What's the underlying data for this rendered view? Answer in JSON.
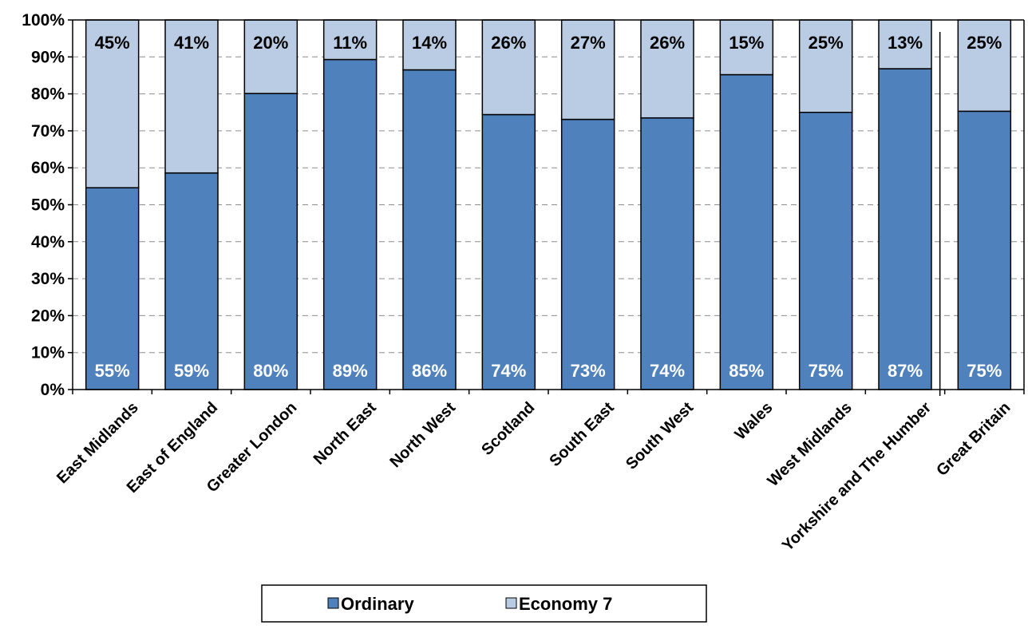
{
  "chart_data": {
    "type": "bar",
    "stacked": true,
    "categories": [
      "East Midlands",
      "East of England",
      "Greater London",
      "North East",
      "North West",
      "Scotland",
      "South East",
      "South West",
      "Wales",
      "West Midlands",
      "Yorkshire and The Humber",
      "Great Britain"
    ],
    "series": [
      {
        "name": "Ordinary",
        "values": [
          54.6,
          58.6,
          80.1,
          89.3,
          86.5,
          74.4,
          73.1,
          73.5,
          85.2,
          75.0,
          86.8,
          75.3
        ],
        "labels": [
          "55%",
          "59%",
          "80%",
          "89%",
          "86%",
          "74%",
          "73%",
          "74%",
          "85%",
          "75%",
          "87%",
          "75%"
        ]
      },
      {
        "name": "Economy 7",
        "values": [
          45.4,
          41.4,
          19.9,
          10.7,
          13.5,
          25.6,
          26.9,
          26.5,
          14.8,
          25.0,
          13.2,
          24.7
        ],
        "labels": [
          "45%",
          "41%",
          "20%",
          "11%",
          "14%",
          "26%",
          "27%",
          "26%",
          "15%",
          "25%",
          "13%",
          "25%"
        ]
      }
    ],
    "yticks": [
      "0%",
      "10%",
      "20%",
      "30%",
      "40%",
      "50%",
      "60%",
      "70%",
      "80%",
      "90%",
      "100%"
    ],
    "ylim": [
      0,
      100
    ],
    "grid": true,
    "legend_position": "bottom",
    "colors": {
      "Ordinary": "#4f81bd",
      "Economy 7": "#b9cce4"
    },
    "label_colors": {
      "Ordinary": "#ffffff",
      "Economy 7": "#000000"
    }
  }
}
